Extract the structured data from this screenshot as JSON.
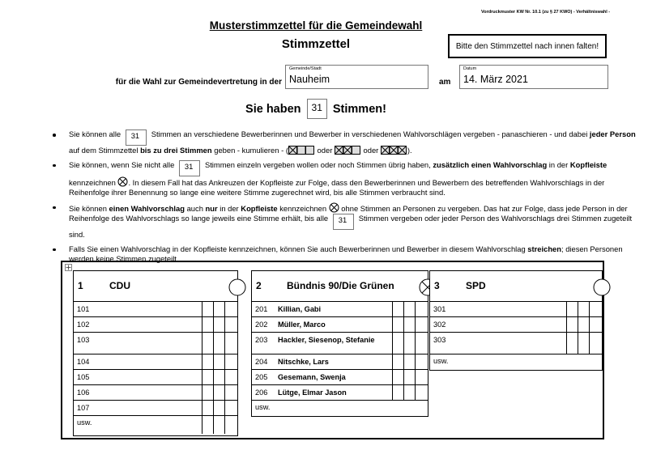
{
  "header": {
    "form_note": "Vordruckmuster KW Nr. 10.1 (zu § 27 KWO) - Verhältniswahl -",
    "title": "Musterstimmzettel für die Gemeindewahl",
    "subtitle": "Stimmzettel",
    "fold_note": "Bitte den Stimmzettel nach innen falten!"
  },
  "election": {
    "lead": "für die Wahl zur Gemeindevertretung in der",
    "place_label": "Gemeinde/Stadt",
    "place": "Nauheim",
    "date_connector": "am",
    "date_label": "Datum",
    "date": "14. März 2021"
  },
  "votes": {
    "before": "Sie haben",
    "count": 31,
    "after": "Stimmen!"
  },
  "instructions": [
    [
      {
        "text": "Sie können alle "
      },
      {
        "box": 31
      },
      {
        "text": " Stimmen an verschiedene Bewerberinnen und Bewerber in verschiedenen Wahlvorschlägen vergeben - panaschieren - und dabei "
      },
      {
        "text": "jeder Person",
        "style": "bold"
      },
      {
        "text": " auf dem Stimmzettel "
      },
      {
        "text": "bis zu drei Stimmen",
        "style": "bold"
      },
      {
        "text": " geben - kumulieren - ("
      },
      {
        "symbol": "crossed-boxes-1"
      },
      {
        "text": " oder "
      },
      {
        "symbol": "crossed-boxes-2"
      },
      {
        "text": " oder "
      },
      {
        "symbol": "crossed-boxes-3"
      },
      {
        "text": ")."
      }
    ],
    [
      {
        "text": "Sie können, wenn Sie nicht alle "
      },
      {
        "box": 31
      },
      {
        "text": " Stimmen einzeln vergeben wollen oder noch Stimmen übrig haben, "
      },
      {
        "text": "zusätzlich einen Wahlvorschlag",
        "style": "bold"
      },
      {
        "text": " in der "
      },
      {
        "text": "Kopfleiste",
        "style": "bold"
      },
      {
        "text": " kennzeichnen "
      },
      {
        "symbol": "crossed-circle"
      },
      {
        "text": ". In diesem Fall hat das Ankreuzen der Kopfleiste zur Folge, dass den Bewerberinnen und Bewerbern des betreffenden Wahlvorschlags in der Reihenfolge ihrer Benennung so lange eine weitere Stimme zugerechnet wird, bis alle Stimmen verbraucht sind."
      }
    ],
    [
      {
        "text": "Sie können "
      },
      {
        "text": "einen Wahlvorschlag",
        "style": "bold"
      },
      {
        "text": " auch "
      },
      {
        "text": "nur",
        "style": "bold"
      },
      {
        "text": " in der "
      },
      {
        "text": "Kopfleiste",
        "style": "bold"
      },
      {
        "text": " kennzeichnen "
      },
      {
        "symbol": "crossed-circle"
      },
      {
        "text": " ohne Stimmen an Personen zu vergeben. Das hat zur Folge, dass jede Person in der Reihenfolge des Wahlvorschlags so lange jeweils eine Stimme erhält, bis alle "
      },
      {
        "box": 31
      },
      {
        "text": " Stimmen vergeben oder jeder Person des Wahlvorschlags drei Stimmen zugeteilt sind."
      }
    ],
    [
      {
        "text": "Falls Sie einen Wahlvorschlag in der Kopfleiste kennzeichnen, können Sie auch Bewerberinnen und Bewerber in diesem Wahlvorschlag "
      },
      {
        "text": "streichen",
        "style": "bold"
      },
      {
        "text": "; diesen Personen werden keine Stimmen zugeteilt."
      }
    ]
  ],
  "ballot": {
    "parties": [
      {
        "number": 1,
        "name": "CDU",
        "marked": false,
        "candidates": [
          {
            "number": 101
          },
          {
            "number": 102
          },
          {
            "number": 103
          },
          {
            "number": 104
          },
          {
            "number": 105
          },
          {
            "number": 106
          },
          {
            "number": 107
          }
        ],
        "more": "usw."
      },
      {
        "number": 2,
        "name": "Bündnis 90/Die Grünen",
        "marked": true,
        "candidates": [
          {
            "number": 201,
            "name": "Killian, Gabi"
          },
          {
            "number": 202,
            "name": "Müller, Marco"
          },
          {
            "number": 203,
            "name": "Hackler, Siesenop, Stefanie"
          },
          {
            "number": 204,
            "name": "Nitschke, Lars"
          },
          {
            "number": 205,
            "name": "Gesemann, Swenja"
          },
          {
            "number": 206,
            "name": "Lütge, Elmar Jason"
          }
        ],
        "more": "usw."
      },
      {
        "number": 3,
        "name": "SPD",
        "marked": false,
        "candidates": [
          {
            "number": 301
          },
          {
            "number": 302
          },
          {
            "number": 303
          }
        ],
        "more": "usw."
      }
    ]
  }
}
